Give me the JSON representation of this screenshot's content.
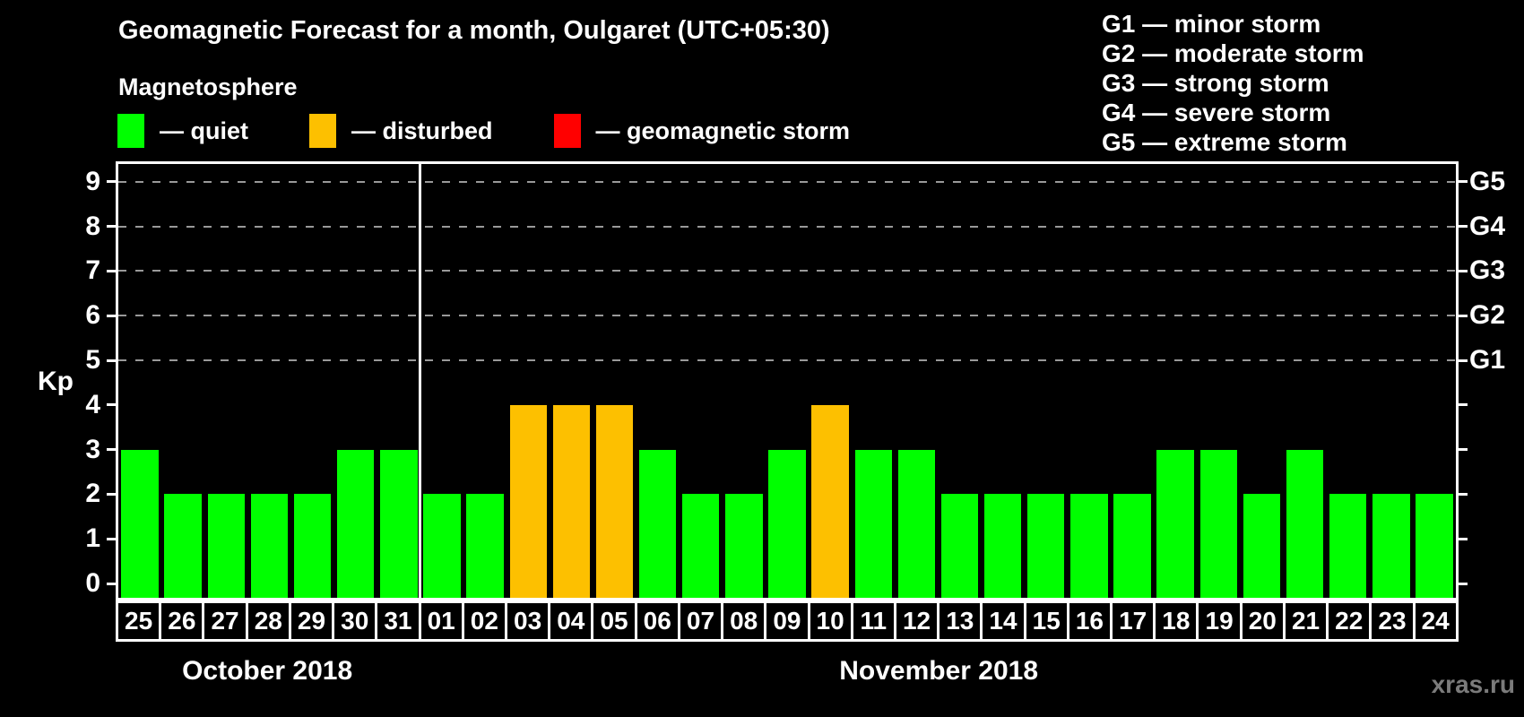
{
  "header": {
    "title": "Geomagnetic Forecast for a month, Oulgaret (UTC+05:30)",
    "subtitle": "Magnetosphere",
    "dash": "—",
    "legend": [
      {
        "label": "quiet",
        "color": "#00ff00"
      },
      {
        "label": "disturbed",
        "color": "#fdc000"
      },
      {
        "label": "geomagnetic storm",
        "color": "#ff0000"
      }
    ],
    "g_scale": [
      {
        "code": "G1",
        "desc": "minor storm"
      },
      {
        "code": "G2",
        "desc": "moderate storm"
      },
      {
        "code": "G3",
        "desc": "strong storm"
      },
      {
        "code": "G4",
        "desc": "severe storm"
      },
      {
        "code": "G5",
        "desc": "extreme storm"
      }
    ]
  },
  "watermark": "xras.ru",
  "chart_data": {
    "type": "bar",
    "ylabel": "Kp",
    "ylim": [
      0,
      9.4
    ],
    "y_ticks": [
      0,
      1,
      2,
      3,
      4,
      5,
      6,
      7,
      8,
      9
    ],
    "dashed_gridlines_at": [
      5,
      6,
      7,
      8,
      9
    ],
    "right_axis_labels": [
      {
        "kp": 5,
        "label": "G1"
      },
      {
        "kp": 6,
        "label": "G2"
      },
      {
        "kp": 7,
        "label": "G3"
      },
      {
        "kp": 8,
        "label": "G4"
      },
      {
        "kp": 9,
        "label": "G5"
      }
    ],
    "state_colors": {
      "quiet": "#00ff00",
      "disturbed": "#fdc000",
      "storm": "#ff0000"
    },
    "legend_position": "top-left",
    "grid": "dashed horizontal 5-9 only",
    "months": [
      {
        "label": "October 2018",
        "days": [
          "25",
          "26",
          "27",
          "28",
          "29",
          "30",
          "31"
        ],
        "values": [
          3,
          2,
          2,
          2,
          2,
          3,
          3
        ],
        "states": [
          "quiet",
          "quiet",
          "quiet",
          "quiet",
          "quiet",
          "quiet",
          "quiet"
        ]
      },
      {
        "label": "November 2018",
        "days": [
          "01",
          "02",
          "03",
          "04",
          "05",
          "06",
          "07",
          "08",
          "09",
          "10",
          "11",
          "12",
          "13",
          "14",
          "15",
          "16",
          "17",
          "18",
          "19",
          "20",
          "21",
          "22",
          "23",
          "24"
        ],
        "values": [
          2,
          2,
          4,
          4,
          4,
          3,
          2,
          2,
          3,
          4,
          3,
          3,
          2,
          2,
          2,
          2,
          2,
          3,
          3,
          2,
          3,
          2,
          2,
          2
        ],
        "states": [
          "quiet",
          "quiet",
          "disturbed",
          "disturbed",
          "disturbed",
          "quiet",
          "quiet",
          "quiet",
          "quiet",
          "disturbed",
          "quiet",
          "quiet",
          "quiet",
          "quiet",
          "quiet",
          "quiet",
          "quiet",
          "quiet",
          "quiet",
          "quiet",
          "quiet",
          "quiet",
          "quiet",
          "quiet"
        ]
      }
    ]
  }
}
